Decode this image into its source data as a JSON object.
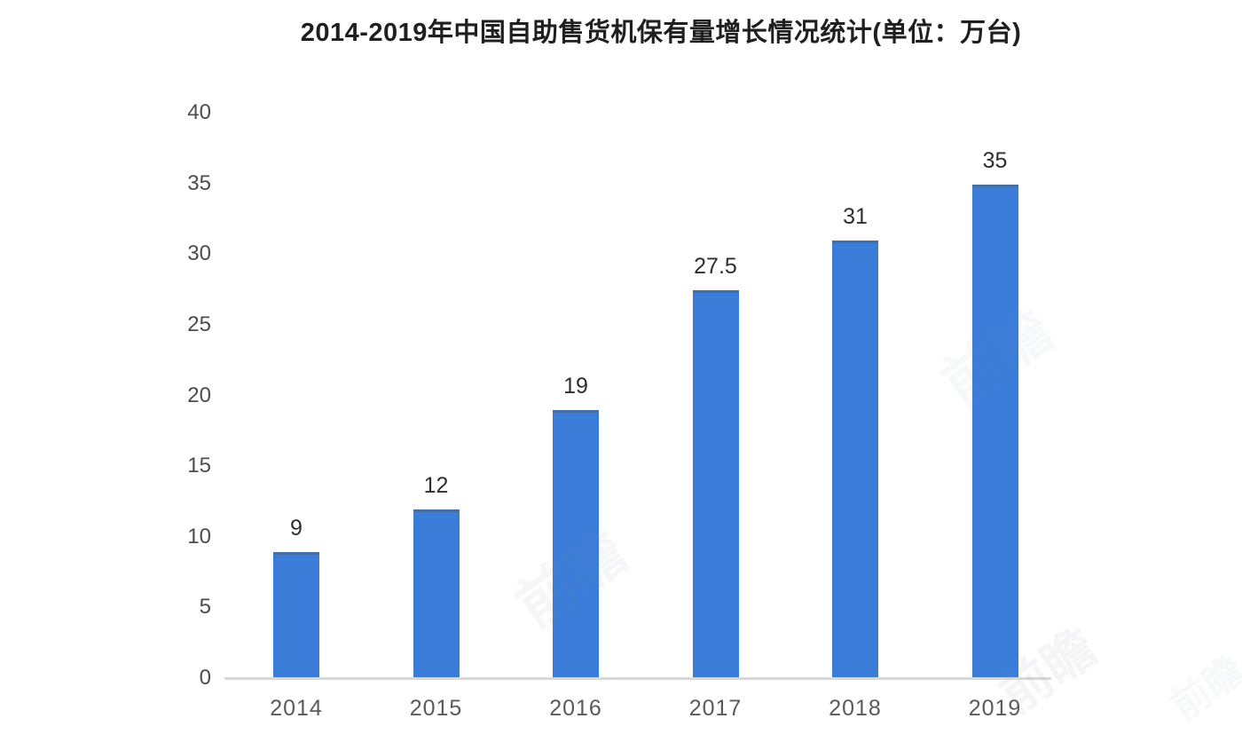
{
  "title": "2014-2019年中国自助售货机保有量增长情况统计(单位：万台)",
  "watermark": "前瞻",
  "colors": {
    "bar": "#3a7cd8",
    "axis": "#d8d8d8",
    "title": "#1f1f1f",
    "tick": "#4c4c4c",
    "label": "#2e2e2e",
    "xlabel": "#5a5a5a"
  },
  "chart_data": {
    "type": "bar",
    "title": "2014-2019年中国自助售货机保有量增长情况统计(单位：万台)",
    "categories": [
      "2014",
      "2015",
      "2016",
      "2017",
      "2018",
      "2019"
    ],
    "values": [
      9,
      12,
      19,
      27.5,
      31,
      35
    ],
    "value_labels": [
      "9",
      "12",
      "19",
      "27.5",
      "31",
      "35"
    ],
    "unit": "万台",
    "xlabel": "",
    "ylabel": "",
    "ylim": [
      0,
      40
    ],
    "yticks": [
      0,
      5,
      10,
      15,
      20,
      25,
      30,
      35,
      40
    ],
    "grid": false,
    "legend_position": "none",
    "bar_color": "#3a7cd8"
  }
}
